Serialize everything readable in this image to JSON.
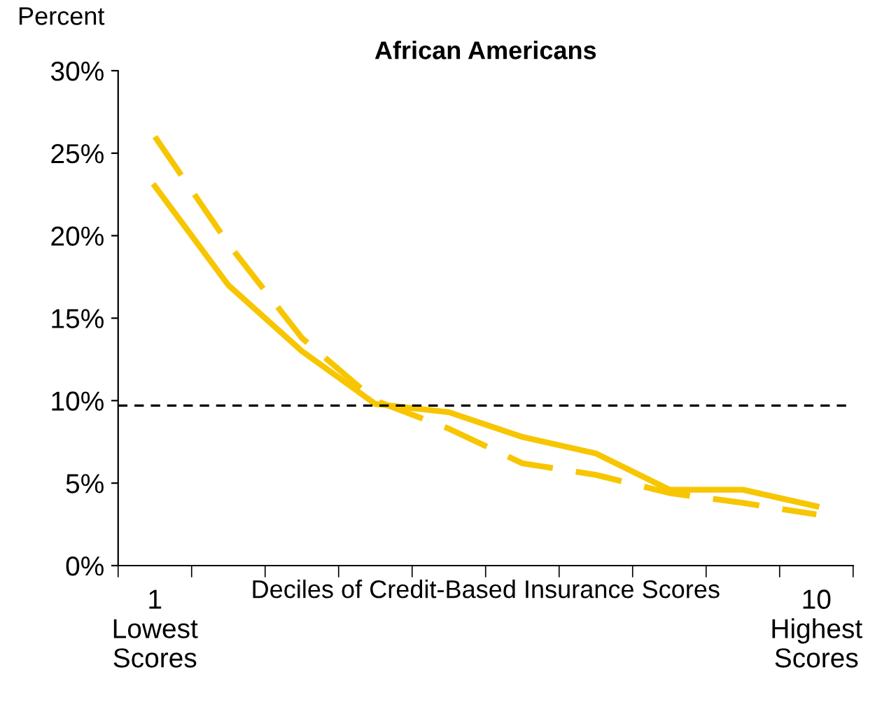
{
  "chart_data": {
    "type": "line",
    "title": "African Americans",
    "ylabel": "Percent",
    "xlabel": "Deciles of Credit-Based Insurance Scores",
    "categories": [
      "1\nLowest\nScores",
      null,
      null,
      null,
      null,
      null,
      null,
      null,
      null,
      "10\nHighest\nScores"
    ],
    "series": [
      {
        "color": "#f7c600",
        "line_style": "solid",
        "values": [
          23,
          17,
          13,
          9.8,
          9.3,
          7.8,
          6.8,
          4.6,
          4.6,
          3.6
        ]
      },
      {
        "color": "#f7c600",
        "line_style": "dashed",
        "values": [
          26,
          19.5,
          13.8,
          10,
          8.3,
          6.2,
          5.5,
          4.4,
          3.8,
          3.1
        ]
      }
    ],
    "ylim": [
      0,
      30
    ],
    "yticks": [
      {
        "value": 0,
        "label": "0%"
      },
      {
        "value": 5,
        "label": "5%"
      },
      {
        "value": 10,
        "label": "10%"
      },
      {
        "value": 15,
        "label": "15%"
      },
      {
        "value": 20,
        "label": "20%"
      },
      {
        "value": 25,
        "label": "25%"
      },
      {
        "value": 30,
        "label": "30%"
      }
    ],
    "ref_lines": [
      {
        "axis": "y",
        "value": 9.7,
        "label": null,
        "color": "#000000",
        "line_style": "dashed"
      }
    ],
    "grid": false,
    "legend": false,
    "marker": "none"
  }
}
